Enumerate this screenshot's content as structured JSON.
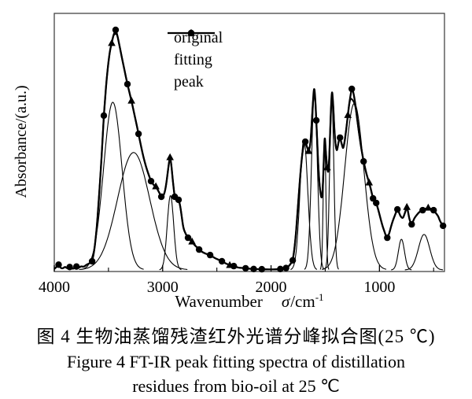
{
  "caption": {
    "line1_zh": "图 4  生物油蒸馏残渣红外光谱分峰拟合图(25 ℃)",
    "line2_en": "Figure 4  FT-IR peak fitting spectra of distillation",
    "line3_en": "residues from bio-oil at 25 ℃"
  },
  "chart_data": {
    "type": "line",
    "title": "",
    "xlabel_word": "Wavenumber",
    "xlabel_symbol": "σ",
    "xlabel_unit": "/cm",
    "xlabel_sup": "-1",
    "ylabel": "Absorbance/(a.u.)",
    "x_axis": {
      "range": [
        4000,
        400
      ],
      "reversed": true,
      "major_ticks": [
        4000,
        3000,
        2000,
        1000
      ],
      "minor_ticks": [
        3500,
        2500,
        1500,
        500
      ]
    },
    "y_axis": {
      "range": [
        0,
        1.07
      ],
      "ticks": [],
      "unit": "a.u."
    },
    "grid": false,
    "legend_position": "inside-top",
    "legend": [
      {
        "label": "original",
        "marker": "circle"
      },
      {
        "label": "fitting",
        "marker": "triangle"
      },
      {
        "label": "peak",
        "marker": "none"
      }
    ],
    "colors": {
      "curve": "#000000",
      "frame": "#444444",
      "background": "#ffffff"
    },
    "series": {
      "original": {
        "name": "original",
        "marker": "circle",
        "points": [
          [
            4000,
            0.004
          ],
          [
            3978,
            0.013
          ],
          [
            3960,
            0.022
          ],
          [
            3945,
            0.01
          ],
          [
            3925,
            0.005
          ],
          [
            3900,
            0.014
          ],
          [
            3880,
            0.006
          ],
          [
            3858,
            0.012
          ],
          [
            3838,
            0.005
          ],
          [
            3815,
            0.006
          ],
          [
            3795,
            0.014
          ],
          [
            3775,
            0.008
          ],
          [
            3752,
            0.016
          ],
          [
            3730,
            0.012
          ],
          [
            3708,
            0.02
          ],
          [
            3685,
            0.026
          ],
          [
            3665,
            0.03
          ],
          [
            3651,
            0.036
          ],
          [
            3635,
            0.07
          ],
          [
            3618,
            0.13
          ],
          [
            3600,
            0.22
          ],
          [
            3585,
            0.32
          ],
          [
            3570,
            0.42
          ],
          [
            3557,
            0.52
          ],
          [
            3543,
            0.643
          ],
          [
            3530,
            0.72
          ],
          [
            3516,
            0.8
          ],
          [
            3500,
            0.868
          ],
          [
            3484,
            0.92
          ],
          [
            3470,
            0.945
          ],
          [
            3455,
            0.978
          ],
          [
            3434,
            1.0
          ],
          [
            3418,
            0.978
          ],
          [
            3400,
            0.938
          ],
          [
            3378,
            0.888
          ],
          [
            3352,
            0.832
          ],
          [
            3325,
            0.774
          ],
          [
            3305,
            0.736
          ],
          [
            3288,
            0.705
          ],
          [
            3268,
            0.662
          ],
          [
            3246,
            0.617
          ],
          [
            3223,
            0.567
          ],
          [
            3198,
            0.512
          ],
          [
            3176,
            0.468
          ],
          [
            3155,
            0.432
          ],
          [
            3132,
            0.4
          ],
          [
            3107,
            0.37
          ],
          [
            3085,
            0.354
          ],
          [
            3063,
            0.348
          ],
          [
            3038,
            0.328
          ],
          [
            3012,
            0.305
          ],
          [
            2992,
            0.308
          ],
          [
            2972,
            0.34
          ],
          [
            2952,
            0.41
          ],
          [
            2940,
            0.452
          ],
          [
            2932,
            0.469
          ],
          [
            2922,
            0.448
          ],
          [
            2912,
            0.4
          ],
          [
            2900,
            0.345
          ],
          [
            2889,
            0.305
          ],
          [
            2872,
            0.296
          ],
          [
            2853,
            0.292
          ],
          [
            2838,
            0.268
          ],
          [
            2822,
            0.215
          ],
          [
            2809,
            0.174
          ],
          [
            2788,
            0.15
          ],
          [
            2766,
            0.134
          ],
          [
            2748,
            0.125
          ],
          [
            2729,
            0.118
          ],
          [
            2705,
            0.103
          ],
          [
            2685,
            0.095
          ],
          [
            2664,
            0.085
          ],
          [
            2640,
            0.076
          ],
          [
            2615,
            0.07
          ],
          [
            2590,
            0.066
          ],
          [
            2562,
            0.062
          ],
          [
            2535,
            0.054
          ],
          [
            2508,
            0.047
          ],
          [
            2480,
            0.042
          ],
          [
            2453,
            0.036
          ],
          [
            2435,
            0.031
          ],
          [
            2408,
            0.025
          ],
          [
            2381,
            0.02
          ],
          [
            2362,
            0.018
          ],
          [
            2344,
            0.016
          ],
          [
            2320,
            0.012
          ],
          [
            2295,
            0.009
          ],
          [
            2265,
            0.008
          ],
          [
            2235,
            0.007
          ],
          [
            2200,
            0.005
          ],
          [
            2160,
            0.004
          ],
          [
            2120,
            0.003
          ],
          [
            2085,
            0.003
          ],
          [
            2040,
            0.002
          ],
          [
            2000,
            0.002
          ],
          [
            1965,
            0.002
          ],
          [
            1935,
            0.003
          ],
          [
            1915,
            0.004
          ],
          [
            1895,
            0.003
          ],
          [
            1875,
            0.005
          ],
          [
            1862,
            0.008
          ],
          [
            1845,
            0.012
          ],
          [
            1825,
            0.022
          ],
          [
            1810,
            0.032
          ],
          [
            1800,
            0.04
          ],
          [
            1788,
            0.075
          ],
          [
            1775,
            0.13
          ],
          [
            1762,
            0.2
          ],
          [
            1748,
            0.29
          ],
          [
            1735,
            0.37
          ],
          [
            1722,
            0.44
          ],
          [
            1710,
            0.49
          ],
          [
            1700,
            0.52
          ],
          [
            1684,
            0.534
          ],
          [
            1670,
            0.515
          ],
          [
            1654,
            0.495
          ],
          [
            1642,
            0.51
          ],
          [
            1632,
            0.555
          ],
          [
            1622,
            0.63
          ],
          [
            1612,
            0.71
          ],
          [
            1603,
            0.764
          ],
          [
            1594,
            0.73
          ],
          [
            1582,
            0.623
          ],
          [
            1571,
            0.5
          ],
          [
            1560,
            0.4
          ],
          [
            1548,
            0.33
          ],
          [
            1531,
            0.289
          ],
          [
            1521,
            0.36
          ],
          [
            1512,
            0.48
          ],
          [
            1505,
            0.567
          ],
          [
            1496,
            0.5
          ],
          [
            1486,
            0.44
          ],
          [
            1473,
            0.397
          ],
          [
            1464,
            0.45
          ],
          [
            1455,
            0.57
          ],
          [
            1446,
            0.69
          ],
          [
            1437,
            0.754
          ],
          [
            1428,
            0.7
          ],
          [
            1418,
            0.6
          ],
          [
            1405,
            0.52
          ],
          [
            1393,
            0.492
          ],
          [
            1382,
            0.52
          ],
          [
            1372,
            0.545
          ],
          [
            1364,
            0.551
          ],
          [
            1352,
            0.532
          ],
          [
            1342,
            0.515
          ],
          [
            1335,
            0.505
          ],
          [
            1325,
            0.525
          ],
          [
            1312,
            0.565
          ],
          [
            1300,
            0.61
          ],
          [
            1291,
            0.645
          ],
          [
            1278,
            0.695
          ],
          [
            1266,
            0.73
          ],
          [
            1255,
            0.754
          ],
          [
            1243,
            0.745
          ],
          [
            1230,
            0.715
          ],
          [
            1215,
            0.665
          ],
          [
            1200,
            0.61
          ],
          [
            1182,
            0.55
          ],
          [
            1165,
            0.5
          ],
          [
            1146,
            0.452
          ],
          [
            1128,
            0.415
          ],
          [
            1110,
            0.385
          ],
          [
            1095,
            0.364
          ],
          [
            1076,
            0.33
          ],
          [
            1059,
            0.298
          ],
          [
            1045,
            0.288
          ],
          [
            1030,
            0.279
          ],
          [
            1018,
            0.262
          ],
          [
            1002,
            0.235
          ],
          [
            986,
            0.207
          ],
          [
            968,
            0.178
          ],
          [
            950,
            0.155
          ],
          [
            938,
            0.14
          ],
          [
            928,
            0.134
          ],
          [
            915,
            0.145
          ],
          [
            900,
            0.168
          ],
          [
            885,
            0.193
          ],
          [
            868,
            0.215
          ],
          [
            850,
            0.237
          ],
          [
            834,
            0.252
          ],
          [
            822,
            0.243
          ],
          [
            810,
            0.228
          ],
          [
            796,
            0.218
          ],
          [
            783,
            0.216
          ],
          [
            772,
            0.228
          ],
          [
            760,
            0.245
          ],
          [
            747,
            0.262
          ],
          [
            737,
            0.245
          ],
          [
            725,
            0.215
          ],
          [
            714,
            0.198
          ],
          [
            703,
            0.19
          ],
          [
            692,
            0.2
          ],
          [
            680,
            0.213
          ],
          [
            668,
            0.222
          ],
          [
            650,
            0.232
          ],
          [
            635,
            0.24
          ],
          [
            618,
            0.245
          ],
          [
            601,
            0.249
          ],
          [
            585,
            0.253
          ],
          [
            568,
            0.256
          ],
          [
            550,
            0.259
          ],
          [
            538,
            0.257
          ],
          [
            525,
            0.254
          ],
          [
            512,
            0.252
          ],
          [
            500,
            0.249
          ],
          [
            488,
            0.242
          ],
          [
            475,
            0.234
          ],
          [
            465,
            0.228
          ],
          [
            456,
            0.222
          ],
          [
            445,
            0.208
          ],
          [
            432,
            0.196
          ],
          [
            420,
            0.189
          ],
          [
            413,
            0.184
          ],
          [
            405,
            0.174
          ]
        ],
        "marker_positions": [
          3960,
          3858,
          3795,
          3651,
          3543,
          3434,
          3325,
          3223,
          3107,
          3012,
          2889,
          2853,
          2766,
          2664,
          2562,
          2453,
          2344,
          2235,
          2160,
          2085,
          1915,
          1862,
          1800,
          1684,
          1582,
          1364,
          1255,
          1146,
          1059,
          1030,
          928,
          834,
          703,
          601,
          500,
          413
        ]
      },
      "fitting": {
        "name": "fitting",
        "marker": "triangle",
        "adjustments": [
          [
            3434,
            0.985
          ],
          [
            1603,
            0.735
          ],
          [
            1505,
            0.545
          ],
          [
            1437,
            0.728
          ],
          [
            1266,
            0.715
          ],
          [
            1255,
            0.712
          ],
          [
            1243,
            0.705
          ],
          [
            1230,
            0.695
          ]
        ],
        "marker_positions": [
          3470,
          3288,
          3063,
          2932,
          2729,
          2381,
          1654,
          1482,
          1291,
          1095,
          747,
          550
        ]
      },
      "peaks": {
        "name": "peak",
        "gaussians": [
          {
            "center": 3460,
            "height": 0.7,
            "sigma": 85
          },
          {
            "center": 3268,
            "height": 0.49,
            "sigma": 148
          },
          {
            "center": 2928,
            "height": 0.31,
            "sigma": 30
          },
          {
            "center": 1697,
            "height": 0.545,
            "sigma": 36
          },
          {
            "center": 1600,
            "height": 0.735,
            "sigma": 27
          },
          {
            "center": 1506,
            "height": 0.55,
            "sigma": 12
          },
          {
            "center": 1440,
            "height": 0.725,
            "sigma": 19
          },
          {
            "center": 1232,
            "height": 0.695,
            "sigma": 88
          },
          {
            "center": 797,
            "height": 0.128,
            "sigma": 28
          },
          {
            "center": 588,
            "height": 0.148,
            "sigma": 52
          }
        ]
      }
    }
  }
}
